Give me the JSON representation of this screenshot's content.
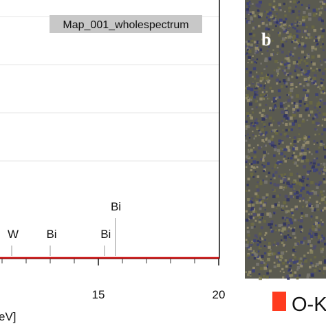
{
  "chart_data": {
    "type": "line",
    "title": "Map_001_wholespectrum",
    "xlabel_fragment": "eV]",
    "xlim": [
      10.2,
      20.4
    ],
    "x_ticks": [
      15,
      20
    ],
    "x_tick_labels": [
      "15",
      "20"
    ],
    "y_gridlines": 4,
    "grid": true,
    "series": [
      {
        "color": "#cc1111",
        "x": [
          10.2,
          11.0,
          12.0,
          13.0,
          14.0,
          15.0,
          16.0,
          17.0,
          18.0,
          19.0,
          20.0,
          20.4
        ],
        "y": [
          0,
          0,
          0,
          0,
          0,
          0,
          0,
          0,
          0,
          0,
          0,
          0
        ]
      }
    ],
    "peak_markers": [
      {
        "label": "W",
        "energy": 10.5,
        "height": "tall"
      },
      {
        "label": "W",
        "energy": 11.4,
        "height": "short"
      },
      {
        "label": "Bi",
        "energy": 13.0,
        "height": "short"
      },
      {
        "label": "Bi",
        "energy": 15.25,
        "height": "short"
      },
      {
        "label": "Bi",
        "energy": 15.7,
        "height": "tall"
      }
    ]
  },
  "panel_b": {
    "label": "b",
    "background": "#5a5a50",
    "dot_colors": [
      "#3b3f7a",
      "#6b6a42",
      "#7a7870",
      "#2f3360",
      "#8a8660",
      "#4e4c6e",
      "#9a9070"
    ]
  },
  "legend": {
    "swatch_color": "#ff3b1f",
    "label": "O-K"
  }
}
